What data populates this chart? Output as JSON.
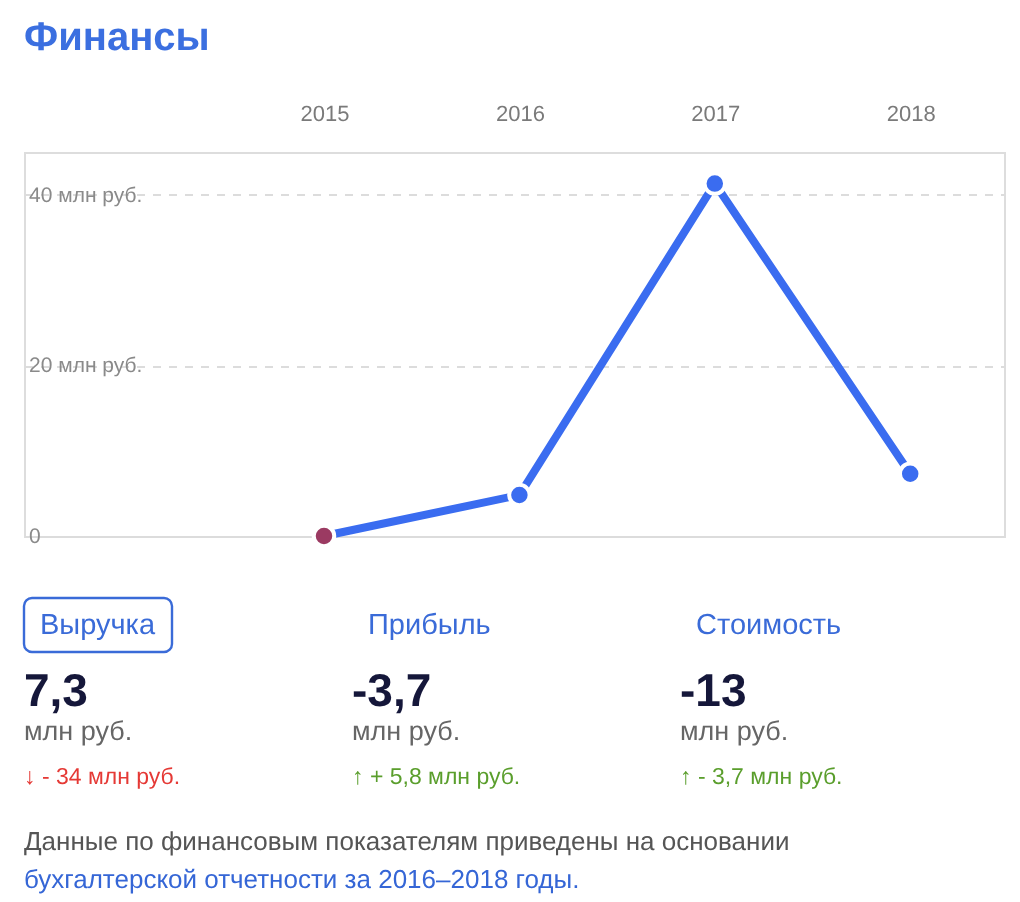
{
  "chart_data": [
    {
      "type": "line",
      "title": "Финансы",
      "categories": [
        "2015",
        "2016",
        "2017",
        "2018"
      ],
      "series": [
        {
          "color": "#3a6cf0",
          "colors": [
            "#9b3a62",
            "#3a6cf0",
            "#3a6cf0",
            "#3a6cf0"
          ],
          "values": [
            0,
            4.8,
            41.3,
            7.3
          ]
        }
      ],
      "ylim": [
        0,
        45
      ],
      "yticks": [
        0,
        {
          "value": 20,
          "label": "20 млн руб."
        },
        {
          "value": 40,
          "label": "40 млн руб."
        }
      ],
      "grid": "y",
      "marker": "circle",
      "line_style": "solid"
    },
    {
      "type": "other",
      "categories": [
        "Выручка",
        "Прибыль",
        "Стоимость"
      ],
      "series": [
        {
          "color": "#15173a",
          "values": [
            7.3,
            -3.7,
            -13
          ],
          "value_labels": [
            "7,3",
            "-3,7",
            "-13"
          ]
        },
        {
          "colors": [
            "#e53935",
            "#5a9e2c",
            "#5a9e2c"
          ],
          "values": [
            -34,
            5.8,
            -3.7
          ],
          "value_labels": [
            "↓ - 34 млн руб.",
            "↑ + 5,8 млн руб.",
            "↑ - 3,7 млн руб."
          ]
        }
      ],
      "annotations": [
        "млн руб.",
        "млн руб.",
        "млн руб.",
        "Данные по финансовым показателям приведены на основании",
        "бухгалтерской отчетности за 2016–2018 годы."
      ]
    }
  ]
}
